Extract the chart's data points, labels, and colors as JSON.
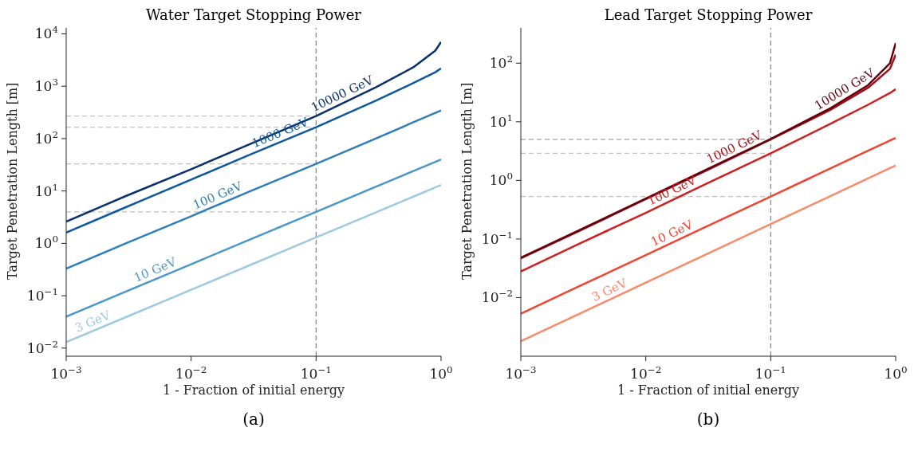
{
  "chart_data": [
    {
      "type": "line",
      "title": "Water Target Stopping Power",
      "xlabel": "1 - Fraction of initial energy",
      "ylabel": "Target Penetration Length [m]",
      "log": "xy",
      "x": [
        0.001,
        0.003,
        0.01,
        0.03,
        0.1,
        0.3,
        0.6,
        0.9,
        1
      ],
      "series": [
        {
          "name": "3 GeV",
          "color": "#9ecae1",
          "values": [
            0.013,
            0.039,
            0.13,
            0.39,
            1.3,
            3.9,
            7.8,
            11.7,
            13
          ]
        },
        {
          "name": "10 GeV",
          "color": "#4a97c9",
          "values": [
            0.04,
            0.12,
            0.4,
            1.2,
            4,
            12,
            24,
            36,
            40
          ]
        },
        {
          "name": "100 GeV",
          "color": "#2e7ebc",
          "values": [
            0.33,
            1,
            3.3,
            10,
            33,
            100,
            205,
            310,
            345
          ]
        },
        {
          "name": "1000 GeV",
          "color": "#0d57a1",
          "values": [
            1.6,
            4.9,
            16.5,
            50,
            165,
            530,
            1150,
            1850,
            2200
          ]
        },
        {
          "name": "10000 GeV",
          "color": "#08306b",
          "values": [
            2.6,
            8,
            26,
            80,
            270,
            950,
            2300,
            4800,
            7000
          ]
        }
      ],
      "xlim": [
        0.001,
        1
      ],
      "xticks": [
        {
          "value": 0.001,
          "label": "10$^{−3}$"
        },
        {
          "value": 0.01,
          "label": "10$^{−2}$"
        },
        {
          "value": 0.1,
          "label": "10$^{−1}$"
        },
        {
          "value": 1,
          "label": "10$^{0}$"
        }
      ],
      "ylim": [
        0.007,
        13000
      ],
      "yticks": [
        {
          "value": 0.01,
          "label": "10$^{−2}$"
        },
        {
          "value": 0.1,
          "label": "10$^{−1}$"
        },
        {
          "value": 1,
          "label": "10$^{0}$"
        },
        {
          "value": 10,
          "label": "10$^{1}$"
        },
        {
          "value": 100,
          "label": "10$^{2}$"
        },
        {
          "value": 1000,
          "label": "10$^{3}$"
        },
        {
          "value": 10000,
          "label": "10$^{4}$"
        }
      ],
      "ref_lines": [
        {
          "axis": "x",
          "value": 0.1,
          "color": "#808080",
          "line_style": "dashed"
        },
        {
          "axis": "y",
          "value": 270,
          "color": "#c0c0c0",
          "line_style": "dashed"
        },
        {
          "axis": "y",
          "value": 165,
          "color": "#c0c0c0",
          "line_style": "dashed"
        },
        {
          "axis": "y",
          "value": 33,
          "color": "#c0c0c0",
          "line_style": "dashed"
        },
        {
          "axis": "y",
          "value": 4,
          "color": "#c0c0c0",
          "line_style": "dashed"
        }
      ],
      "annotations": [
        "(a)"
      ]
    },
    {
      "type": "line",
      "title": "Lead Target Stopping Power",
      "xlabel": "1 - Fraction of initial energy",
      "ylabel": "Target Penetration Length [m]",
      "log": "xy",
      "x": [
        0.001,
        0.003,
        0.01,
        0.03,
        0.1,
        0.3,
        0.6,
        0.9,
        1
      ],
      "series": [
        {
          "name": "3 GeV",
          "color": "#fc8a6a",
          "values": [
            0.0018,
            0.0054,
            0.018,
            0.054,
            0.18,
            0.54,
            1.08,
            1.62,
            1.8
          ]
        },
        {
          "name": "10 GeV",
          "color": "#f14432",
          "values": [
            0.0053,
            0.016,
            0.053,
            0.16,
            0.53,
            1.6,
            3.2,
            4.8,
            5.3
          ]
        },
        {
          "name": "100 GeV",
          "color": "#d11e1f",
          "values": [
            0.028,
            0.085,
            0.28,
            0.86,
            2.9,
            9.2,
            19.5,
            31,
            36
          ]
        },
        {
          "name": "1000 GeV",
          "color": "#a50f15",
          "values": [
            0.047,
            0.14,
            0.48,
            1.45,
            5,
            16,
            38,
            80,
            140
          ]
        },
        {
          "name": "10000 GeV",
          "color": "#67000d",
          "values": [
            0.048,
            0.145,
            0.49,
            1.5,
            5.1,
            17,
            42,
            100,
            220
          ]
        }
      ],
      "xlim": [
        0.001,
        1
      ],
      "xticks": [
        {
          "value": 0.001,
          "label": "10$^{−3}$"
        },
        {
          "value": 0.01,
          "label": "10$^{−2}$"
        },
        {
          "value": 0.1,
          "label": "10$^{−1}$"
        },
        {
          "value": 1,
          "label": "10$^{0}$"
        }
      ],
      "ylim": [
        0.001,
        400
      ],
      "yticks": [
        {
          "value": 0.01,
          "label": "10$^{−2}$"
        },
        {
          "value": 0.1,
          "label": "10$^{−1}$"
        },
        {
          "value": 1,
          "label": "10$^{0}$"
        },
        {
          "value": 10,
          "label": "10$^{1}$"
        },
        {
          "value": 100,
          "label": "10$^{2}$"
        }
      ],
      "ref_lines": [
        {
          "axis": "x",
          "value": 0.1,
          "color": "#808080",
          "line_style": "dashed"
        },
        {
          "axis": "y",
          "value": 5,
          "color": "#a0a0a0",
          "line_style": "dashed"
        },
        {
          "axis": "y",
          "value": 2.9,
          "color": "#c0c0c0",
          "line_style": "dashed"
        },
        {
          "axis": "y",
          "value": 0.53,
          "color": "#c0c0c0",
          "line_style": "dashed"
        }
      ],
      "annotations": [
        "(b)"
      ]
    }
  ]
}
